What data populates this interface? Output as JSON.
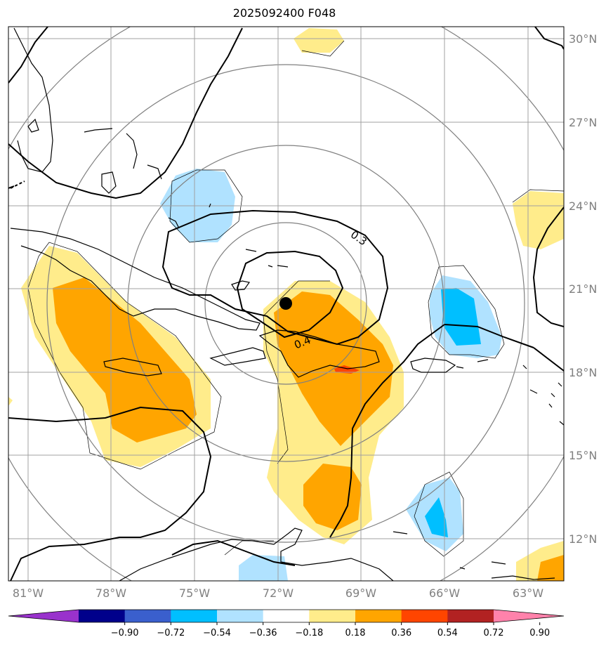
{
  "title": "2025092400 F048",
  "map": {
    "lon_range": [
      -82,
      -61.5
    ],
    "lat_range": [
      10,
      30.5
    ],
    "lat_labels": [
      "30°N",
      "27°N",
      "24°N",
      "21°N",
      "18°N",
      "15°N",
      "12°N"
    ],
    "lon_labels": [
      "81°W",
      "78°W",
      "75°W",
      "72°W",
      "69°W",
      "66°W",
      "63°W"
    ],
    "center_marker": {
      "lon": -72.0,
      "lat": 20.5
    },
    "contour_labels": [
      "0.3",
      "0.4"
    ]
  },
  "colorbar": {
    "ticks": [
      "−0.90",
      "−0.72",
      "−0.54",
      "−0.36",
      "−0.18",
      "0.18",
      "0.36",
      "0.54",
      "0.72",
      "0.90"
    ],
    "colors": [
      "#9932cc",
      "#00008b",
      "#3a5fcd",
      "#00bfff",
      "#b0e2ff",
      "#ffffff",
      "#ffec8b",
      "#ffa500",
      "#ff4500",
      "#b22222",
      "#ff82ab"
    ]
  },
  "colors": {
    "light_yellow": "#ffec8b",
    "orange": "#ffa500",
    "red": "#ff4500",
    "light_blue": "#b0e2ff",
    "blue": "#00bfff",
    "grid": "#a0a0a0",
    "range_rings": "#808080"
  }
}
